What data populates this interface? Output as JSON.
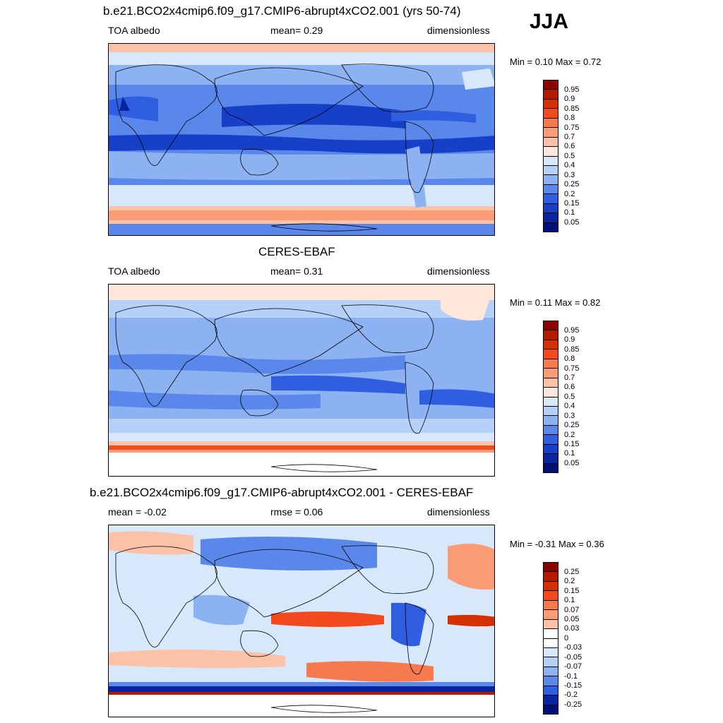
{
  "season": "JJA",
  "panels": [
    {
      "title": "b.e21.BCO2x4cmip6.f09_g17.CMIP6-abrupt4xCO2.001 (yrs 50-74)",
      "left_label": "TOA albedo",
      "center_label": "mean=   0.29",
      "right_label": "dimensionless",
      "minmax": "Min =   0.10 Max =   0.72",
      "colorbar": {
        "labels": [
          "0.95",
          "0.9",
          "0.85",
          "0.8",
          "0.75",
          "0.7",
          "0.6",
          "0.5",
          "0.4",
          "0.3",
          "0.25",
          "0.2",
          "0.15",
          "0.1",
          "0.05"
        ],
        "colors": [
          "#8b0000",
          "#b31a00",
          "#d63000",
          "#f24a1c",
          "#f77a4e",
          "#fb9c76",
          "#fcc2a8",
          "#fde6da",
          "#d7e8fb",
          "#b6d1f8",
          "#8db2f2",
          "#5a88ea",
          "#2f5fe0",
          "#1640c8",
          "#0a24a0",
          "#000f78"
        ]
      }
    },
    {
      "title": "CERES-EBAF",
      "left_label": "TOA albedo",
      "center_label": "mean=   0.31",
      "right_label": "dimensionless",
      "minmax": "Min =   0.11 Max =   0.82",
      "colorbar": {
        "labels": [
          "0.95",
          "0.9",
          "0.85",
          "0.8",
          "0.75",
          "0.7",
          "0.6",
          "0.5",
          "0.4",
          "0.3",
          "0.25",
          "0.2",
          "0.15",
          "0.1",
          "0.05"
        ],
        "colors": [
          "#8b0000",
          "#b31a00",
          "#d63000",
          "#f24a1c",
          "#f77a4e",
          "#fb9c76",
          "#fcc2a8",
          "#fde6da",
          "#d7e8fb",
          "#b6d1f8",
          "#8db2f2",
          "#5a88ea",
          "#2f5fe0",
          "#1640c8",
          "#0a24a0",
          "#000f78"
        ]
      }
    },
    {
      "title": "b.e21.BCO2x4cmip6.f09_g17.CMIP6-abrupt4xCO2.001 - CERES-EBAF",
      "left_label": "mean =  -0.02",
      "center_label": "rmse =   0.06",
      "right_label": "dimensionless",
      "minmax": "Min =  -0.31 Max =   0.36",
      "colorbar": {
        "labels": [
          "0.25",
          "0.2",
          "0.15",
          "0.1",
          "0.07",
          "0.05",
          "0.03",
          "0",
          "-0.03",
          "-0.05",
          "-0.07",
          "-0.1",
          "-0.15",
          "-0.2",
          "-0.25"
        ],
        "colors": [
          "#8b0000",
          "#b31a00",
          "#d63000",
          "#f24a1c",
          "#f77a4e",
          "#fb9c76",
          "#fcc2a8",
          "#ffffff",
          "#ffffff",
          "#d7e8fb",
          "#b6d1f8",
          "#8db2f2",
          "#5a88ea",
          "#2f5fe0",
          "#0a24a0",
          "#000f78"
        ]
      }
    }
  ]
}
